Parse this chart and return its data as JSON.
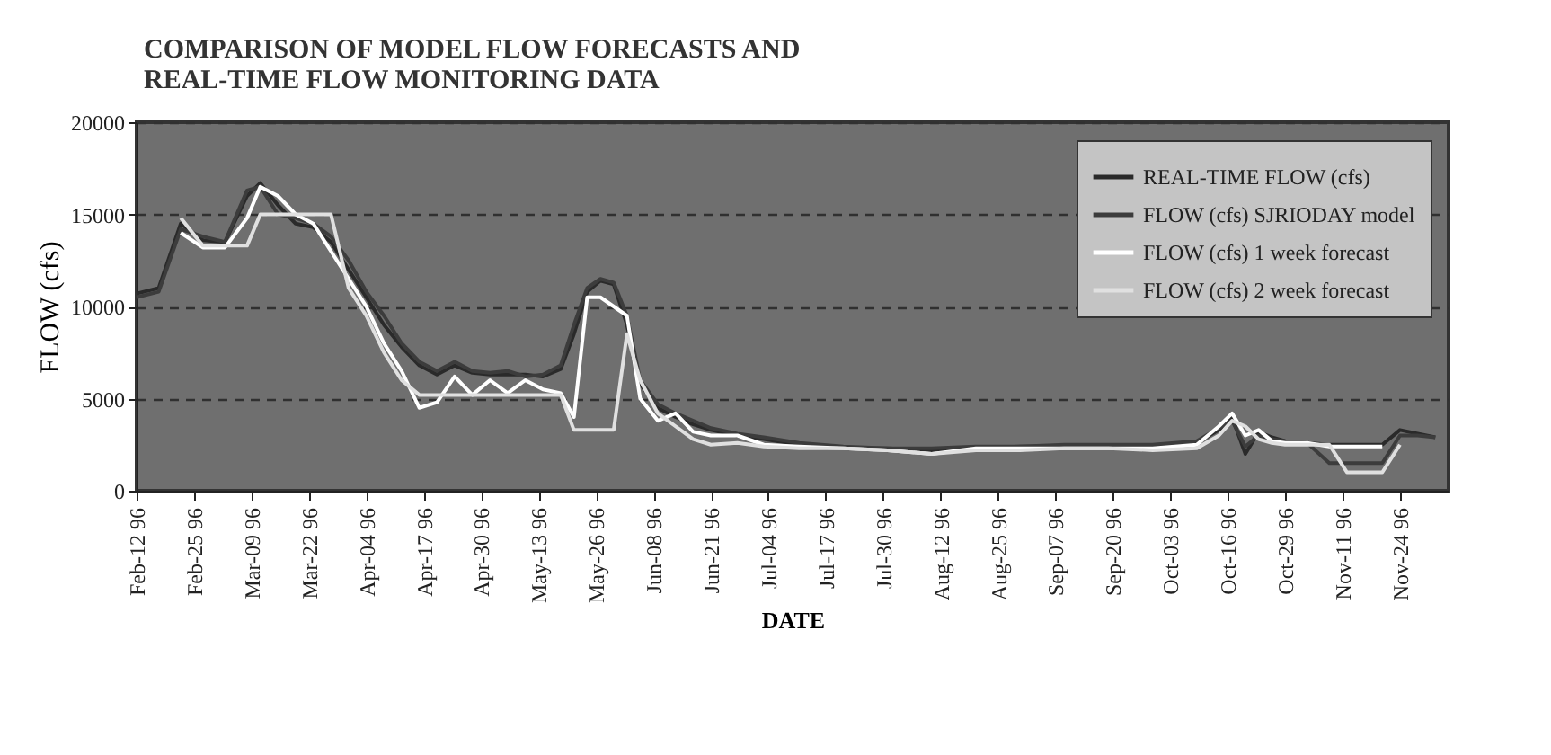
{
  "chart_data": {
    "type": "line",
    "title": "COMPARISON OF MODEL FLOW FORECASTS AND\nREAL-TIME FLOW MONITORING DATA",
    "xlabel": "DATE",
    "ylabel": "FLOW (cfs)",
    "x": [
      "1996-02-12",
      "1996-02-17",
      "1996-02-22",
      "1996-02-27",
      "1996-03-03",
      "1996-03-08",
      "1996-03-11",
      "1996-03-15",
      "1996-03-19",
      "1996-03-23",
      "1996-03-27",
      "1996-03-31",
      "1996-04-04",
      "1996-04-08",
      "1996-04-12",
      "1996-04-16",
      "1996-04-20",
      "1996-04-24",
      "1996-04-28",
      "1996-05-02",
      "1996-05-06",
      "1996-05-10",
      "1996-05-14",
      "1996-05-18",
      "1996-05-21",
      "1996-05-24",
      "1996-05-27",
      "1996-05-30",
      "1996-06-02",
      "1996-06-05",
      "1996-06-09",
      "1996-06-13",
      "1996-06-17",
      "1996-06-21",
      "1996-06-27",
      "1996-07-03",
      "1996-07-11",
      "1996-07-21",
      "1996-07-31",
      "1996-08-10",
      "1996-08-20",
      "1996-08-30",
      "1996-09-09",
      "1996-09-19",
      "1996-09-29",
      "1996-10-09",
      "1996-10-14",
      "1996-10-17",
      "1996-10-20",
      "1996-10-23",
      "1996-10-26",
      "1996-10-29",
      "1996-11-03",
      "1996-11-08",
      "1996-11-12",
      "1996-11-16",
      "1996-11-20",
      "1996-11-24",
      "1996-11-28",
      "1996-12-02"
    ],
    "series": [
      {
        "name": "REAL-TIME FLOW (cfs)",
        "color": "#2a2a2a",
        "values": [
          10700,
          11000,
          14500,
          13600,
          13500,
          16000,
          16700,
          15500,
          14500,
          14300,
          13500,
          12000,
          10500,
          9000,
          7800,
          6800,
          6300,
          6800,
          6400,
          6300,
          6300,
          6300,
          6200,
          6600,
          8500,
          10800,
          11400,
          11200,
          9000,
          5800,
          4500,
          4000,
          3600,
          3300,
          3000,
          2800,
          2500,
          2300,
          2300,
          2200,
          2300,
          2400,
          2400,
          2400,
          2400,
          2600,
          3300,
          4000,
          2000,
          3200,
          2900,
          2700,
          2600,
          2500,
          2500,
          2500,
          2500,
          3300,
          3100,
          2900
        ]
      },
      {
        "name": "FLOW (cfs) SJRIODAY model",
        "color": "#3c3c3c",
        "values": [
          10500,
          10800,
          14200,
          13800,
          13500,
          16300,
          16500,
          15000,
          14800,
          14500,
          13800,
          12500,
          10800,
          9500,
          8000,
          7000,
          6500,
          7000,
          6500,
          6400,
          6500,
          6200,
          6300,
          6800,
          9000,
          11000,
          11500,
          11300,
          9500,
          6000,
          4700,
          4200,
          3800,
          3400,
          3100,
          2900,
          2600,
          2400,
          2300,
          2300,
          2400,
          2400,
          2500,
          2500,
          2500,
          2700,
          3400,
          3800,
          2400,
          3000,
          2800,
          2700,
          2600,
          1500,
          1500,
          1500,
          1500,
          3000,
          3000,
          2900
        ]
      },
      {
        "name": "FLOW (cfs) 1 week forecast",
        "color": "#ffffff",
        "values": [
          null,
          null,
          14000,
          13200,
          13200,
          14800,
          16500,
          16000,
          15000,
          14500,
          13000,
          11500,
          10000,
          8000,
          6500,
          4500,
          4800,
          6200,
          5200,
          6000,
          5300,
          6000,
          5500,
          5300,
          4000,
          10500,
          10500,
          10000,
          9500,
          5000,
          3800,
          4200,
          3200,
          3000,
          3000,
          2500,
          2400,
          2300,
          2200,
          2000,
          2300,
          2300,
          2300,
          2300,
          2300,
          2500,
          3500,
          4200,
          3000,
          3300,
          2700,
          2600,
          2600,
          2400,
          2400,
          2400,
          2400,
          null,
          null,
          null
        ]
      },
      {
        "name": "FLOW (cfs) 2 week forecast",
        "color": "#e0e0e0",
        "values": [
          null,
          null,
          14800,
          13300,
          13300,
          13300,
          15000,
          15000,
          15000,
          15000,
          15000,
          11000,
          9500,
          7500,
          6000,
          5200,
          5200,
          5200,
          5200,
          5200,
          5200,
          5200,
          5200,
          5200,
          3300,
          3300,
          3300,
          3300,
          8500,
          6000,
          4200,
          3500,
          2800,
          2500,
          2600,
          2400,
          2300,
          2300,
          2200,
          2000,
          2200,
          2200,
          2300,
          2300,
          2200,
          2300,
          3000,
          3800,
          3500,
          2800,
          2600,
          2500,
          2500,
          2500,
          1000,
          1000,
          1000,
          2500,
          null,
          null
        ]
      }
    ],
    "xlim": [
      "1996-02-12",
      "1996-12-05"
    ],
    "xticks": [
      {
        "value": "1996-02-12",
        "label": "Feb-12 96"
      },
      {
        "value": "1996-02-25",
        "label": "Feb-25 96"
      },
      {
        "value": "1996-03-09",
        "label": "Mar-09 96"
      },
      {
        "value": "1996-03-22",
        "label": "Mar-22 96"
      },
      {
        "value": "1996-04-04",
        "label": "Apr-04 96"
      },
      {
        "value": "1996-04-17",
        "label": "Apr-17 96"
      },
      {
        "value": "1996-04-30",
        "label": "Apr-30 96"
      },
      {
        "value": "1996-05-13",
        "label": "May-13 96"
      },
      {
        "value": "1996-05-26",
        "label": "May-26 96"
      },
      {
        "value": "1996-06-08",
        "label": "Jun-08 96"
      },
      {
        "value": "1996-06-21",
        "label": "Jun-21 96"
      },
      {
        "value": "1996-07-04",
        "label": "Jul-04 96"
      },
      {
        "value": "1996-07-17",
        "label": "Jul-17 96"
      },
      {
        "value": "1996-07-30",
        "label": "Jul-30 96"
      },
      {
        "value": "1996-08-12",
        "label": "Aug-12 96"
      },
      {
        "value": "1996-08-25",
        "label": "Aug-25 96"
      },
      {
        "value": "1996-09-07",
        "label": "Sep-07 96"
      },
      {
        "value": "1996-09-20",
        "label": "Sep-20 96"
      },
      {
        "value": "1996-10-03",
        "label": "Oct-03 96"
      },
      {
        "value": "1996-10-16",
        "label": "Oct-16 96"
      },
      {
        "value": "1996-10-29",
        "label": "Oct-29 96"
      },
      {
        "value": "1996-11-11",
        "label": "Nov-11 96"
      },
      {
        "value": "1996-11-24",
        "label": "Nov-24 96"
      }
    ],
    "ylim": [
      0,
      20000
    ],
    "yticks": [
      0,
      5000,
      10000,
      15000,
      20000
    ],
    "grid": "y",
    "legend": "top right",
    "marker": "none",
    "line_style": "solid"
  }
}
